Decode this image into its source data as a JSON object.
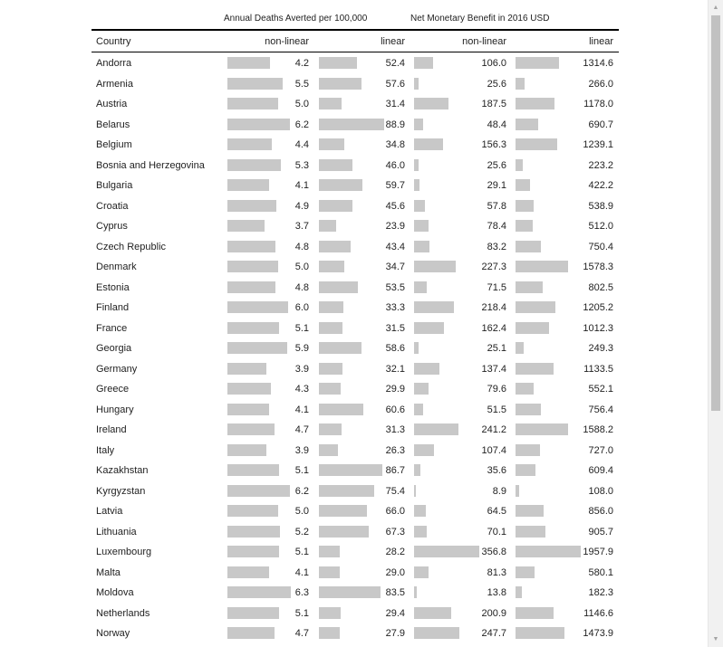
{
  "chart_data": {
    "type": "table",
    "group_headers": [
      "Annual Deaths Averted per 100,000",
      "Net Monetary Benefit in 2016 USD"
    ],
    "columns": [
      "Country",
      "non-linear",
      "linear",
      "non-linear",
      "linear"
    ],
    "rows": [
      {
        "country": "Andorra",
        "deaths_nonlinear": 4.2,
        "deaths_linear": 52.4,
        "benefit_nonlinear": 106.0,
        "benefit_linear": 1314.6
      },
      {
        "country": "Armenia",
        "deaths_nonlinear": 5.5,
        "deaths_linear": 57.6,
        "benefit_nonlinear": 25.6,
        "benefit_linear": 266.0
      },
      {
        "country": "Austria",
        "deaths_nonlinear": 5.0,
        "deaths_linear": 31.4,
        "benefit_nonlinear": 187.5,
        "benefit_linear": 1178.0
      },
      {
        "country": "Belarus",
        "deaths_nonlinear": 6.2,
        "deaths_linear": 88.9,
        "benefit_nonlinear": 48.4,
        "benefit_linear": 690.7
      },
      {
        "country": "Belgium",
        "deaths_nonlinear": 4.4,
        "deaths_linear": 34.8,
        "benefit_nonlinear": 156.3,
        "benefit_linear": 1239.1
      },
      {
        "country": "Bosnia and Herzegovina",
        "deaths_nonlinear": 5.3,
        "deaths_linear": 46.0,
        "benefit_nonlinear": 25.6,
        "benefit_linear": 223.2
      },
      {
        "country": "Bulgaria",
        "deaths_nonlinear": 4.1,
        "deaths_linear": 59.7,
        "benefit_nonlinear": 29.1,
        "benefit_linear": 422.2
      },
      {
        "country": "Croatia",
        "deaths_nonlinear": 4.9,
        "deaths_linear": 45.6,
        "benefit_nonlinear": 57.8,
        "benefit_linear": 538.9
      },
      {
        "country": "Cyprus",
        "deaths_nonlinear": 3.7,
        "deaths_linear": 23.9,
        "benefit_nonlinear": 78.4,
        "benefit_linear": 512.0
      },
      {
        "country": "Czech Republic",
        "deaths_nonlinear": 4.8,
        "deaths_linear": 43.4,
        "benefit_nonlinear": 83.2,
        "benefit_linear": 750.4
      },
      {
        "country": "Denmark",
        "deaths_nonlinear": 5.0,
        "deaths_linear": 34.7,
        "benefit_nonlinear": 227.3,
        "benefit_linear": 1578.3
      },
      {
        "country": "Estonia",
        "deaths_nonlinear": 4.8,
        "deaths_linear": 53.5,
        "benefit_nonlinear": 71.5,
        "benefit_linear": 802.5
      },
      {
        "country": "Finland",
        "deaths_nonlinear": 6.0,
        "deaths_linear": 33.3,
        "benefit_nonlinear": 218.4,
        "benefit_linear": 1205.2
      },
      {
        "country": "France",
        "deaths_nonlinear": 5.1,
        "deaths_linear": 31.5,
        "benefit_nonlinear": 162.4,
        "benefit_linear": 1012.3
      },
      {
        "country": "Georgia",
        "deaths_nonlinear": 5.9,
        "deaths_linear": 58.6,
        "benefit_nonlinear": 25.1,
        "benefit_linear": 249.3
      },
      {
        "country": "Germany",
        "deaths_nonlinear": 3.9,
        "deaths_linear": 32.1,
        "benefit_nonlinear": 137.4,
        "benefit_linear": 1133.5
      },
      {
        "country": "Greece",
        "deaths_nonlinear": 4.3,
        "deaths_linear": 29.9,
        "benefit_nonlinear": 79.6,
        "benefit_linear": 552.1
      },
      {
        "country": "Hungary",
        "deaths_nonlinear": 4.1,
        "deaths_linear": 60.6,
        "benefit_nonlinear": 51.5,
        "benefit_linear": 756.4
      },
      {
        "country": "Ireland",
        "deaths_nonlinear": 4.7,
        "deaths_linear": 31.3,
        "benefit_nonlinear": 241.2,
        "benefit_linear": 1588.2
      },
      {
        "country": "Italy",
        "deaths_nonlinear": 3.9,
        "deaths_linear": 26.3,
        "benefit_nonlinear": 107.4,
        "benefit_linear": 727.0
      },
      {
        "country": "Kazakhstan",
        "deaths_nonlinear": 5.1,
        "deaths_linear": 86.7,
        "benefit_nonlinear": 35.6,
        "benefit_linear": 609.4
      },
      {
        "country": "Kyrgyzstan",
        "deaths_nonlinear": 6.2,
        "deaths_linear": 75.4,
        "benefit_nonlinear": 8.9,
        "benefit_linear": 108.0
      },
      {
        "country": "Latvia",
        "deaths_nonlinear": 5.0,
        "deaths_linear": 66.0,
        "benefit_nonlinear": 64.5,
        "benefit_linear": 856.0
      },
      {
        "country": "Lithuania",
        "deaths_nonlinear": 5.2,
        "deaths_linear": 67.3,
        "benefit_nonlinear": 70.1,
        "benefit_linear": 905.7
      },
      {
        "country": "Luxembourg",
        "deaths_nonlinear": 5.1,
        "deaths_linear": 28.2,
        "benefit_nonlinear": 356.8,
        "benefit_linear": 1957.9
      },
      {
        "country": "Malta",
        "deaths_nonlinear": 4.1,
        "deaths_linear": 29.0,
        "benefit_nonlinear": 81.3,
        "benefit_linear": 580.1
      },
      {
        "country": "Moldova",
        "deaths_nonlinear": 6.3,
        "deaths_linear": 83.5,
        "benefit_nonlinear": 13.8,
        "benefit_linear": 182.3
      },
      {
        "country": "Netherlands",
        "deaths_nonlinear": 5.1,
        "deaths_linear": 29.4,
        "benefit_nonlinear": 200.9,
        "benefit_linear": 1146.6
      },
      {
        "country": "Norway",
        "deaths_nonlinear": 4.7,
        "deaths_linear": 27.9,
        "benefit_nonlinear": 247.7,
        "benefit_linear": 1473.9
      }
    ],
    "bar_color": "#c8c8c8"
  }
}
